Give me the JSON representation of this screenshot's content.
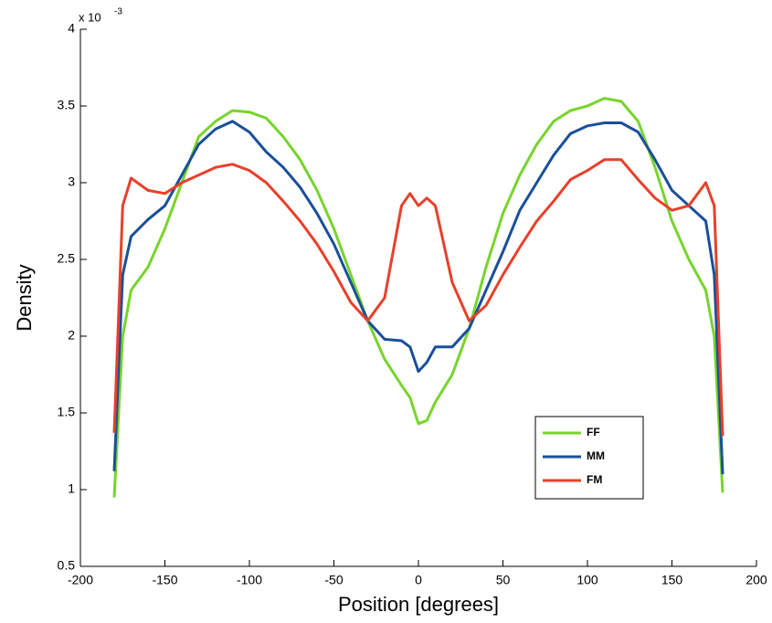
{
  "chart_data": {
    "type": "line",
    "xlabel": "Position [degrees]",
    "ylabel": "Density",
    "y_multiplier": {
      "base": "x 10",
      "exponent": "-3"
    },
    "x": [
      -180,
      -175,
      -170,
      -160,
      -150,
      -140,
      -130,
      -120,
      -110,
      -100,
      -90,
      -80,
      -70,
      -60,
      -50,
      -40,
      -30,
      -20,
      -10,
      -5,
      0,
      5,
      10,
      20,
      30,
      40,
      50,
      60,
      70,
      80,
      90,
      100,
      110,
      120,
      130,
      140,
      150,
      160,
      170,
      175,
      180
    ],
    "series": [
      {
        "name": "FF",
        "color": "#77d42c",
        "values": [
          0.95,
          2.0,
          2.3,
          2.45,
          2.7,
          3.0,
          3.3,
          3.4,
          3.47,
          3.46,
          3.42,
          3.3,
          3.15,
          2.95,
          2.7,
          2.4,
          2.1,
          1.85,
          1.68,
          1.6,
          1.43,
          1.45,
          1.57,
          1.75,
          2.05,
          2.45,
          2.8,
          3.05,
          3.25,
          3.4,
          3.47,
          3.5,
          3.55,
          3.53,
          3.4,
          3.1,
          2.75,
          2.5,
          2.3,
          2.0,
          0.98
        ]
      },
      {
        "name": "MM",
        "color": "#1a4f9a",
        "values": [
          1.12,
          2.4,
          2.65,
          2.76,
          2.85,
          3.05,
          3.25,
          3.35,
          3.4,
          3.33,
          3.2,
          3.1,
          2.97,
          2.8,
          2.6,
          2.35,
          2.1,
          1.98,
          1.97,
          1.93,
          1.77,
          1.83,
          1.93,
          1.93,
          2.05,
          2.3,
          2.55,
          2.82,
          3.0,
          3.18,
          3.32,
          3.37,
          3.39,
          3.39,
          3.33,
          3.15,
          2.95,
          2.85,
          2.75,
          2.4,
          1.1
        ]
      },
      {
        "name": "FM",
        "color": "#e8402a",
        "values": [
          1.37,
          2.85,
          3.03,
          2.95,
          2.93,
          3.0,
          3.05,
          3.1,
          3.12,
          3.08,
          3.0,
          2.88,
          2.75,
          2.6,
          2.42,
          2.22,
          2.1,
          2.25,
          2.85,
          2.93,
          2.85,
          2.9,
          2.85,
          2.35,
          2.1,
          2.2,
          2.4,
          2.58,
          2.75,
          2.88,
          3.02,
          3.08,
          3.15,
          3.15,
          3.02,
          2.9,
          2.82,
          2.85,
          3.0,
          2.85,
          1.35
        ]
      }
    ],
    "xlim": [
      -200,
      200
    ],
    "xticks": [
      -200,
      -150,
      -100,
      -50,
      0,
      50,
      100,
      150,
      200
    ],
    "ylim": [
      0.5,
      4
    ],
    "yticks": [
      0.5,
      1,
      1.5,
      2,
      2.5,
      3,
      3.5,
      4
    ],
    "grid": false,
    "legend": "lower right"
  }
}
